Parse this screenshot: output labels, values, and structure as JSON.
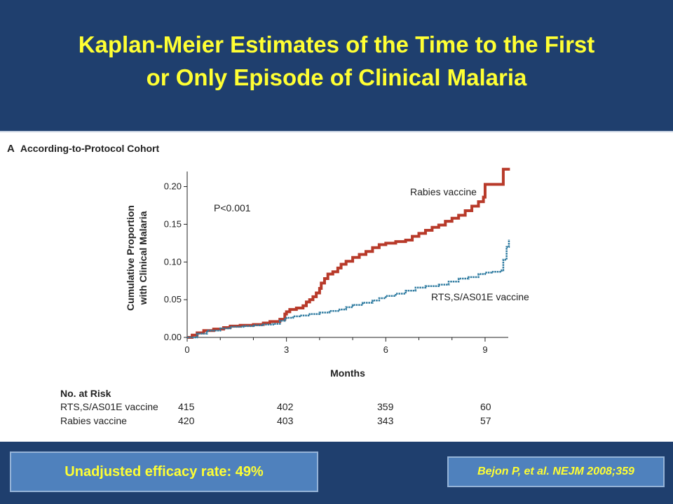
{
  "slide": {
    "title_line1": "Kaplan-Meier Estimates of the Time to the First",
    "title_line2": "or Only Episode of Clinical Malaria",
    "panel_letter": "A",
    "panel_title": "According-to-Protocol Cohort",
    "efficacy_text": "Unadjusted efficacy rate: 49%",
    "citation": "Bejon P, et al. NEJM 2008;359",
    "colors": {
      "background": "#1f3f6e",
      "title": "#ffff33",
      "box": "#4f81bd"
    }
  },
  "chart_data": {
    "type": "line",
    "xlabel": "Months",
    "ylabel_line1": "Cumulative Proportion",
    "ylabel_line2": "with Clinical Malaria",
    "xlim": [
      0,
      9.7
    ],
    "ylim": [
      0,
      0.22
    ],
    "x_ticks": [
      0,
      3,
      6,
      9
    ],
    "y_ticks": [
      0.0,
      0.05,
      0.1,
      0.15,
      0.2
    ],
    "y_tick_labels": [
      "0.00",
      "0.05",
      "0.10",
      "0.15",
      "0.20"
    ],
    "annotation": "P<0.001",
    "step": true,
    "series": [
      {
        "name": "Rabies vaccine",
        "color": "#b83a2a",
        "points": [
          [
            0,
            0
          ],
          [
            0.15,
            0.003
          ],
          [
            0.3,
            0.006
          ],
          [
            0.5,
            0.009
          ],
          [
            0.8,
            0.011
          ],
          [
            1.1,
            0.013
          ],
          [
            1.3,
            0.015
          ],
          [
            1.6,
            0.016
          ],
          [
            2.0,
            0.017
          ],
          [
            2.3,
            0.019
          ],
          [
            2.5,
            0.021
          ],
          [
            2.8,
            0.024
          ],
          [
            2.95,
            0.031
          ],
          [
            3.0,
            0.034
          ],
          [
            3.1,
            0.037
          ],
          [
            3.3,
            0.039
          ],
          [
            3.45,
            0.039
          ],
          [
            3.5,
            0.042
          ],
          [
            3.6,
            0.047
          ],
          [
            3.7,
            0.05
          ],
          [
            3.8,
            0.054
          ],
          [
            3.9,
            0.059
          ],
          [
            4.0,
            0.065
          ],
          [
            4.05,
            0.072
          ],
          [
            4.15,
            0.078
          ],
          [
            4.25,
            0.084
          ],
          [
            4.4,
            0.087
          ],
          [
            4.55,
            0.092
          ],
          [
            4.65,
            0.097
          ],
          [
            4.8,
            0.101
          ],
          [
            5.0,
            0.106
          ],
          [
            5.2,
            0.11
          ],
          [
            5.4,
            0.114
          ],
          [
            5.6,
            0.119
          ],
          [
            5.8,
            0.123
          ],
          [
            6.0,
            0.125
          ],
          [
            6.3,
            0.127
          ],
          [
            6.6,
            0.129
          ],
          [
            6.8,
            0.134
          ],
          [
            7.0,
            0.138
          ],
          [
            7.2,
            0.142
          ],
          [
            7.4,
            0.146
          ],
          [
            7.6,
            0.149
          ],
          [
            7.8,
            0.154
          ],
          [
            8.0,
            0.158
          ],
          [
            8.2,
            0.162
          ],
          [
            8.4,
            0.168
          ],
          [
            8.6,
            0.174
          ],
          [
            8.8,
            0.18
          ],
          [
            8.95,
            0.186
          ],
          [
            9.0,
            0.203
          ],
          [
            9.2,
            0.203
          ],
          [
            9.5,
            0.203
          ],
          [
            9.55,
            0.223
          ],
          [
            9.75,
            0.223
          ]
        ]
      },
      {
        "name": "RTS,S/AS01E vaccine",
        "color": "#2f7ba0",
        "points": [
          [
            0,
            0
          ],
          [
            0.3,
            0.005
          ],
          [
            0.6,
            0.009
          ],
          [
            1.0,
            0.012
          ],
          [
            1.3,
            0.014
          ],
          [
            1.7,
            0.015
          ],
          [
            2.0,
            0.016
          ],
          [
            2.3,
            0.017
          ],
          [
            2.6,
            0.018
          ],
          [
            2.8,
            0.022
          ],
          [
            2.95,
            0.024
          ],
          [
            3.0,
            0.026
          ],
          [
            3.2,
            0.028
          ],
          [
            3.4,
            0.029
          ],
          [
            3.7,
            0.031
          ],
          [
            4.0,
            0.033
          ],
          [
            4.3,
            0.035
          ],
          [
            4.6,
            0.037
          ],
          [
            4.8,
            0.04
          ],
          [
            5.0,
            0.043
          ],
          [
            5.3,
            0.046
          ],
          [
            5.6,
            0.049
          ],
          [
            5.8,
            0.052
          ],
          [
            6.0,
            0.055
          ],
          [
            6.3,
            0.058
          ],
          [
            6.6,
            0.062
          ],
          [
            6.9,
            0.066
          ],
          [
            7.2,
            0.068
          ],
          [
            7.6,
            0.07
          ],
          [
            7.9,
            0.074
          ],
          [
            8.2,
            0.078
          ],
          [
            8.5,
            0.08
          ],
          [
            8.8,
            0.084
          ],
          [
            9.0,
            0.086
          ],
          [
            9.2,
            0.087
          ],
          [
            9.5,
            0.089
          ],
          [
            9.55,
            0.103
          ],
          [
            9.65,
            0.12
          ],
          [
            9.72,
            0.13
          ]
        ]
      }
    ],
    "labels": {
      "rabies": "Rabies vaccine",
      "rts": "RTS,S/AS01E vaccine"
    }
  },
  "risk_table": {
    "title": "No. at Risk",
    "rows": [
      {
        "label": "RTS,S/AS01E vaccine",
        "values": [
          "415",
          "402",
          "359",
          "60"
        ]
      },
      {
        "label": "Rabies vaccine",
        "values": [
          "420",
          "403",
          "343",
          "57"
        ]
      }
    ]
  }
}
